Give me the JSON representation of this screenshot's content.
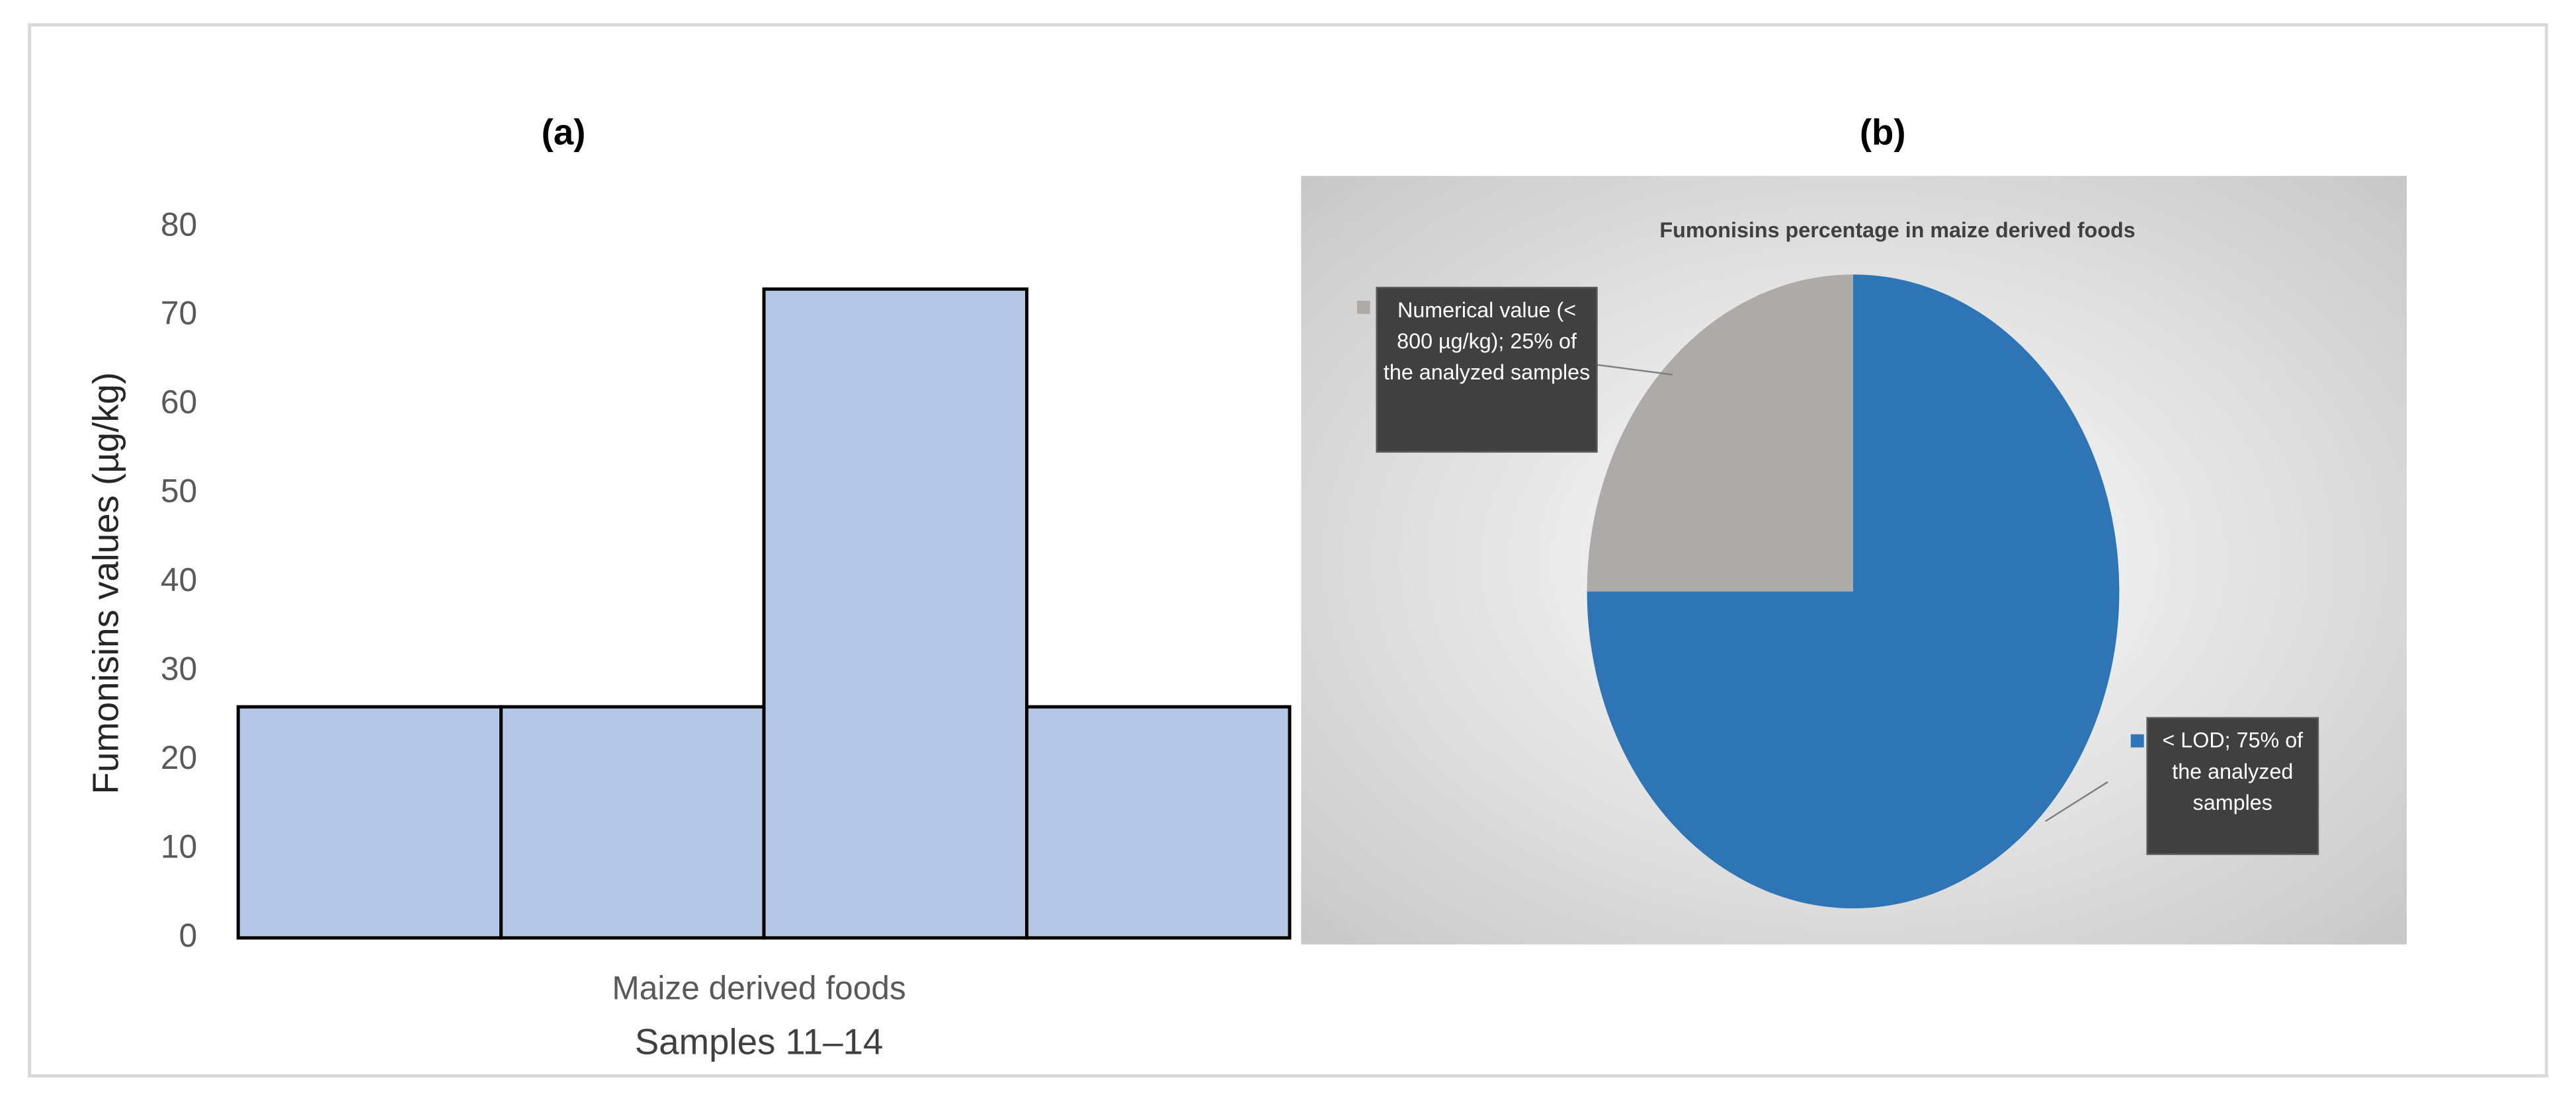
{
  "chart_data": [
    {
      "type": "bar",
      "panel": "(a)",
      "ylabel": "Fumonisins values (µg/kg)",
      "group_label": "Maize derived foods",
      "xlabel": "Samples 11–14",
      "categories": [
        null,
        null,
        null,
        null
      ],
      "values": [
        26,
        26,
        73,
        26
      ],
      "color": "#b4c7e7",
      "ylim": [
        0,
        80
      ],
      "yticks": [
        0,
        10,
        20,
        30,
        40,
        50,
        60,
        70,
        80
      ],
      "grid": false
    },
    {
      "type": "pie",
      "panel": "(b)",
      "title": "Fumonisins percentage in maize derived foods",
      "values": [
        75,
        25
      ],
      "value_labels": [
        "< LOD; 75% of the analyzed samples",
        "Numerical value (< 800 µg/kg); 25% of the analyzed samples"
      ],
      "colors": [
        "#2e75b6",
        "#aeaaaa"
      ]
    }
  ]
}
